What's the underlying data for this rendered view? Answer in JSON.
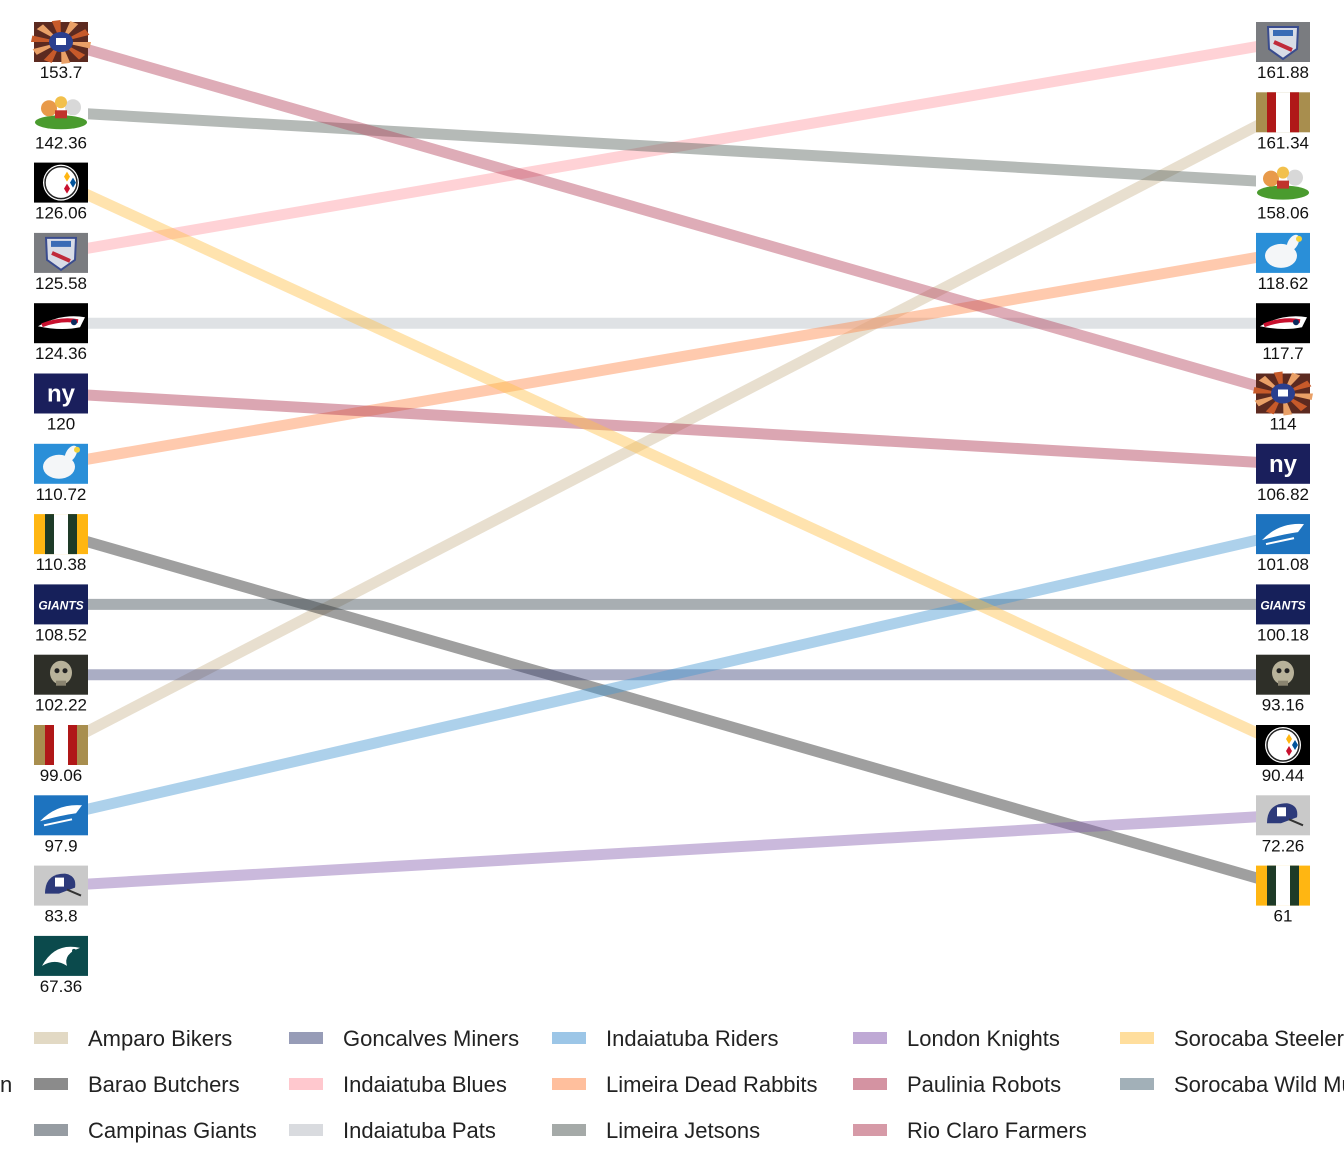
{
  "chart_data": {
    "type": "slope",
    "legend_title": "",
    "legend_position": "bottom",
    "series": [
      {
        "name": "Amparo Bikers",
        "color": "#CBB994",
        "start": 99.06,
        "end": 161.34,
        "logo": "stripe-gold-red"
      },
      {
        "name": "Barao Butchers",
        "color": "#2B2B2B",
        "start": 110.38,
        "end": 61,
        "logo": "stripe-green-gold"
      },
      {
        "name": "Campinas Giants",
        "color": "#3F4B55",
        "start": 108.52,
        "end": 100.18,
        "logo": "giants-wordmark"
      },
      {
        "name": "Goncalves Miners",
        "color": "#424A7C",
        "start": 102.22,
        "end": 93.16,
        "logo": "skull-miner"
      },
      {
        "name": "Indaiatuba Blues",
        "color": "#FF9BA5",
        "start": 125.58,
        "end": 161.88,
        "logo": "shield-blues"
      },
      {
        "name": "Indaiatuba Pats",
        "color": "#B9BEC5",
        "start": 124.36,
        "end": 117.7,
        "logo": "patriot-head"
      },
      {
        "name": "Indaiatuba Riders",
        "color": "#4A98D3",
        "start": 97.9,
        "end": 101.08,
        "logo": "panther-blue"
      },
      {
        "name": "Limeira Dead Rabbits",
        "color": "#FF8A4C",
        "start": 110.72,
        "end": 118.62,
        "logo": "rabbit-cloud"
      },
      {
        "name": "Limeira Jetsons",
        "color": "#5B6560",
        "start": 142.36,
        "end": 158.06,
        "logo": "cartoon-jetsons"
      },
      {
        "name": "London Knights",
        "color": "#8A63B2",
        "start": 83.8,
        "end": 72.26,
        "logo": "helmet-nfl"
      },
      {
        "name": "Paulinia Robots",
        "color": "#B03A55",
        "start": 120,
        "end": 106.82,
        "logo": "ny-logo"
      },
      {
        "name": "Rio Claro Farmers",
        "color": "#B5475F",
        "start": 153.7,
        "end": 114,
        "logo": "starburst-helmet"
      },
      {
        "name": "Sorocaba Steelers",
        "color": "#FFC24C",
        "start": 126.06,
        "end": 90.44,
        "logo": "steelers-logo"
      },
      {
        "name": "Sorocaba Wild Mustangs",
        "color": "#56707E",
        "start": null,
        "end": null,
        "logo": ""
      }
    ],
    "left_column": [
      {
        "label": "153.7",
        "logo": "starburst-helmet"
      },
      {
        "label": "142.36",
        "logo": "cartoon-jetsons"
      },
      {
        "label": "126.06",
        "logo": "steelers-logo"
      },
      {
        "label": "125.58",
        "logo": "shield-blues"
      },
      {
        "label": "124.36",
        "logo": "patriot-head"
      },
      {
        "label": "120",
        "logo": "ny-logo"
      },
      {
        "label": "110.72",
        "logo": "rabbit-cloud"
      },
      {
        "label": "110.38",
        "logo": "stripe-green-gold"
      },
      {
        "label": "108.52",
        "logo": "giants-wordmark"
      },
      {
        "label": "102.22",
        "logo": "skull-miner"
      },
      {
        "label": "99.06",
        "logo": "stripe-gold-red"
      },
      {
        "label": "97.9",
        "logo": "panther-blue"
      },
      {
        "label": "83.8",
        "logo": "helmet-nfl"
      },
      {
        "label": "67.36",
        "logo": "eagle-green"
      }
    ],
    "right_column": [
      {
        "label": "161.88",
        "logo": "shield-blues"
      },
      {
        "label": "161.34",
        "logo": "stripe-gold-red"
      },
      {
        "label": "158.06",
        "logo": "cartoon-jetsons"
      },
      {
        "label": "118.62",
        "logo": "rabbit-cloud"
      },
      {
        "label": "117.7",
        "logo": "patriot-head"
      },
      {
        "label": "114",
        "logo": "starburst-helmet"
      },
      {
        "label": "106.82",
        "logo": "ny-logo"
      },
      {
        "label": "101.08",
        "logo": "panther-blue"
      },
      {
        "label": "100.18",
        "logo": "giants-wordmark"
      },
      {
        "label": "93.16",
        "logo": "skull-miner"
      },
      {
        "label": "90.44",
        "logo": "steelers-logo"
      },
      {
        "label": "72.26",
        "logo": "helmet-nfl"
      },
      {
        "label": "61",
        "logo": "stripe-green-gold"
      }
    ],
    "legend_columns": [
      [
        "Amparo Bikers",
        "Barao Butchers",
        "Campinas Giants"
      ],
      [
        "Goncalves Miners",
        "Indaiatuba Blues",
        "Indaiatuba Pats"
      ],
      [
        "Indaiatuba Riders",
        "Limeira Dead Rabbits",
        "Limeira Jetsons"
      ],
      [
        "London Knights",
        "Paulinia Robots",
        "Rio Claro Farmers"
      ],
      [
        "Sorocaba Steelers",
        "Sorocaba Wild Mustangs"
      ]
    ],
    "legend_clipped_fragment": "n"
  }
}
